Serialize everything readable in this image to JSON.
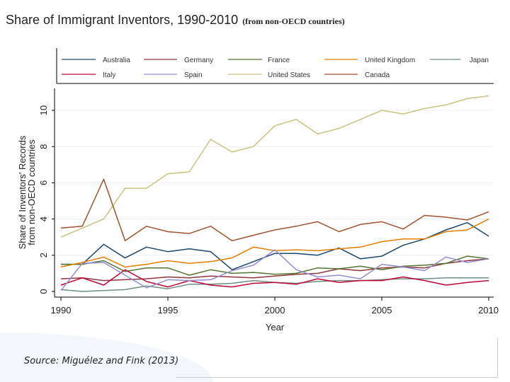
{
  "title": "Share of Immigrant Inventors, 1990-2010",
  "subtitle": "(from non-OECD countries)",
  "source": "Source: Miguélez and Fink (2013)",
  "chart_data": {
    "type": "line",
    "title": "Share of Immigrant Inventors, 1990-2010",
    "xlabel": "Year",
    "ylabel": [
      "Share of Inventors' Records",
      "from non-OECD countries"
    ],
    "xlim": [
      1990,
      2010
    ],
    "ylim": [
      0,
      11
    ],
    "xticks": [
      "1990",
      "1995",
      "2000",
      "2005",
      "2010"
    ],
    "yticks": [
      "0",
      "2",
      "4",
      "6",
      "8",
      "10"
    ],
    "grid": true,
    "legend_position": "top",
    "x": [
      1990,
      1991,
      1992,
      1993,
      1994,
      1995,
      1996,
      1997,
      1998,
      1999,
      2000,
      2001,
      2002,
      2003,
      2004,
      2005,
      2006,
      2007,
      2008,
      2009,
      2010
    ],
    "series": [
      {
        "name": "Australia",
        "color": "#1a476f",
        "values": [
          1.5,
          1.5,
          2.6,
          1.85,
          2.45,
          2.2,
          2.35,
          2.2,
          1.2,
          1.65,
          2.1,
          2.1,
          2.0,
          2.4,
          1.8,
          1.95,
          2.55,
          2.9,
          3.4,
          3.8,
          3.05
        ]
      },
      {
        "name": "Germany",
        "color": "#90353b",
        "values": [
          0.7,
          0.75,
          0.6,
          0.65,
          0.7,
          0.8,
          0.75,
          0.85,
          0.8,
          0.75,
          0.85,
          0.95,
          1.0,
          1.25,
          1.15,
          1.3,
          1.35,
          1.3,
          1.55,
          1.7,
          1.8
        ]
      },
      {
        "name": "France",
        "color": "#55752f",
        "values": [
          1.5,
          1.5,
          1.7,
          1.1,
          1.3,
          1.3,
          0.9,
          1.2,
          1.0,
          1.05,
          0.95,
          1.0,
          1.3,
          1.25,
          1.4,
          1.2,
          1.4,
          1.45,
          1.55,
          1.95,
          1.8
        ]
      },
      {
        "name": "United Kingdom",
        "color": "#e37e00",
        "values": [
          1.35,
          1.6,
          1.9,
          1.35,
          1.5,
          1.7,
          1.55,
          1.65,
          1.85,
          2.45,
          2.25,
          2.3,
          2.25,
          2.35,
          2.45,
          2.75,
          2.9,
          2.9,
          3.3,
          3.4,
          4.0
        ]
      },
      {
        "name": "Japan",
        "color": "#6e8e84",
        "values": [
          0.1,
          0.0,
          0.05,
          0.1,
          0.3,
          0.15,
          0.4,
          0.4,
          0.45,
          0.6,
          0.5,
          0.45,
          0.55,
          0.6,
          0.6,
          0.65,
          0.7,
          0.7,
          0.75,
          0.75,
          0.75
        ]
      },
      {
        "name": "Italy",
        "color": "#c10534",
        "values": [
          0.35,
          0.75,
          0.35,
          1.2,
          0.55,
          0.25,
          0.6,
          0.35,
          0.25,
          0.45,
          0.5,
          0.4,
          0.7,
          0.5,
          0.6,
          0.6,
          0.8,
          0.6,
          0.35,
          0.5,
          0.6
        ]
      },
      {
        "name": "Spain",
        "color": "#938dd2",
        "values": [
          0.05,
          1.55,
          1.6,
          0.9,
          0.2,
          0.65,
          0.6,
          0.65,
          1.15,
          1.45,
          2.3,
          1.2,
          0.8,
          0.9,
          0.7,
          1.5,
          1.35,
          1.15,
          1.9,
          1.6,
          1.8
        ]
      },
      {
        "name": "United States",
        "color": "#cac27e",
        "values": [
          3.0,
          3.5,
          4.0,
          5.7,
          5.7,
          6.5,
          6.6,
          8.4,
          7.7,
          8.0,
          9.15,
          9.5,
          8.7,
          9.0,
          9.5,
          10.0,
          9.8,
          10.1,
          10.3,
          10.65,
          10.8
        ]
      },
      {
        "name": "Canada",
        "color": "#a0522d",
        "values": [
          3.5,
          3.6,
          6.2,
          2.8,
          3.6,
          3.3,
          3.2,
          3.6,
          2.8,
          3.1,
          3.4,
          3.6,
          3.85,
          3.3,
          3.7,
          3.85,
          3.45,
          4.2,
          4.1,
          3.95,
          4.4
        ]
      }
    ]
  }
}
